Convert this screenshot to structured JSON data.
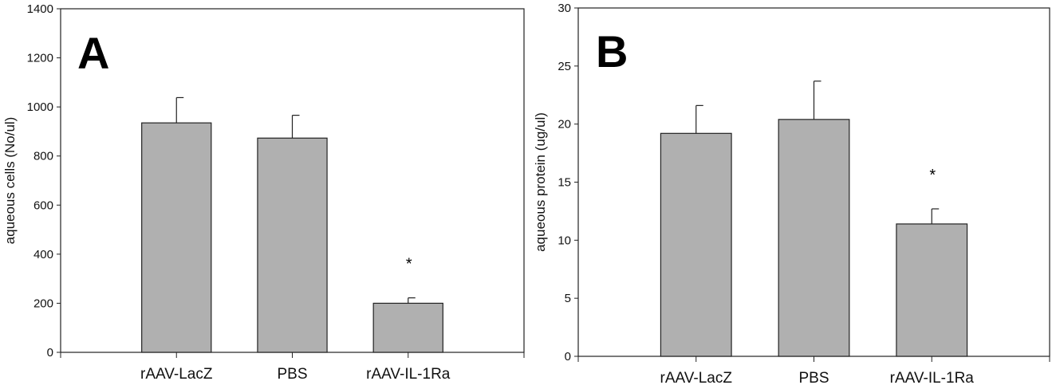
{
  "chart_data": [
    {
      "type": "bar",
      "panel_label": "A",
      "title": "",
      "xlabel": "",
      "ylabel": "aqueous cells (No/ul)",
      "categories": [
        "rAAV-LacZ",
        "PBS",
        "rAAV-IL-1Ra"
      ],
      "values": [
        935,
        873,
        200
      ],
      "errors": [
        103,
        93,
        22
      ],
      "annotations": [
        "",
        "",
        "*"
      ],
      "ylim": [
        0,
        1400
      ],
      "yticks": [
        0,
        200,
        400,
        600,
        800,
        1000,
        1200,
        1400
      ],
      "bar_color": "#b0b0b0",
      "grid": false
    },
    {
      "type": "bar",
      "panel_label": "B",
      "title": "",
      "xlabel": "",
      "ylabel": "aqueous protein (ug/ul)",
      "categories": [
        "rAAV-LacZ",
        "PBS",
        "rAAV-IL-1Ra"
      ],
      "values": [
        19.2,
        20.4,
        11.4
      ],
      "errors": [
        2.4,
        3.3,
        1.3
      ],
      "annotations": [
        "",
        "",
        "*"
      ],
      "ylim": [
        0,
        30
      ],
      "yticks": [
        0,
        5,
        10,
        15,
        20,
        25,
        30
      ],
      "bar_color": "#b0b0b0",
      "grid": false
    }
  ]
}
